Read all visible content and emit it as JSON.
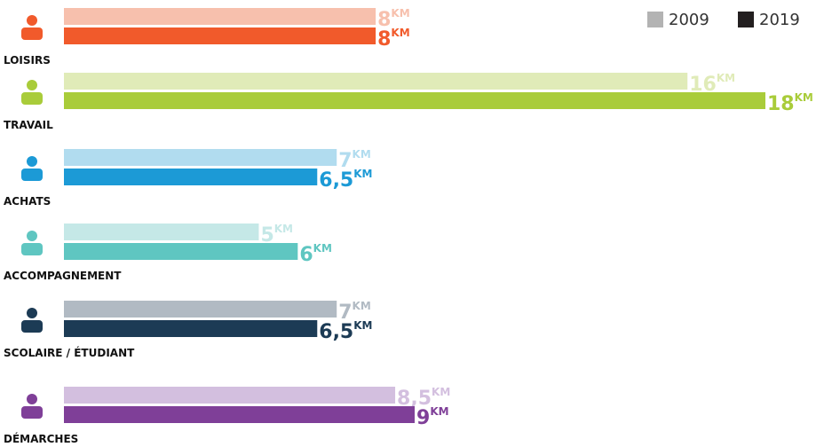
{
  "chart_data": {
    "type": "bar",
    "orientation": "horizontal",
    "categories": [
      "LOISIRS",
      "TRAVAIL",
      "ACHATS",
      "ACCOMPAGNEMENT",
      "SCOLAIRE / ÉTUDIANT",
      "DÉMARCHES"
    ],
    "unit": "KM",
    "series": [
      {
        "name": "2009",
        "color": "#b3b3b3",
        "colors": [
          "#f7c0ad",
          "#e0ebb8",
          "#b1dcef",
          "#c5e8e7",
          "#b1bac3",
          "#d3bfdf"
        ],
        "values": [
          8,
          16,
          7,
          5,
          7,
          8.5
        ],
        "value_labels": [
          "8",
          "16",
          "7",
          "5",
          "7",
          "8,5"
        ]
      },
      {
        "name": "2019",
        "color": "#231f20",
        "colors": [
          "#f15a2b",
          "#a9cc3a",
          "#1c9ad6",
          "#5fc6c1",
          "#1c3b55",
          "#7f3f98"
        ],
        "values": [
          8,
          18,
          6.5,
          6,
          6.5,
          9
        ],
        "value_labels": [
          "8",
          "18",
          "6,5",
          "6",
          "6,5",
          "9"
        ]
      }
    ],
    "legend": "top-right"
  }
}
